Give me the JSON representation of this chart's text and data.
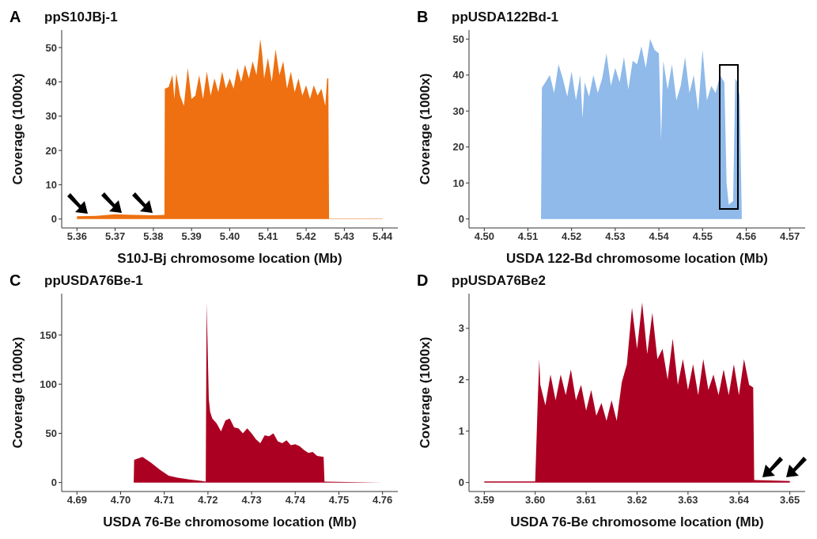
{
  "chart_data": [
    {
      "type": "area",
      "title": "ppS10JBj-1",
      "annotations": [
        "A"
      ],
      "xlabel": "S10J-Bj chromosome location (Mb)",
      "ylabel": "Coverage (1000x)",
      "xlim": [
        5.356,
        5.444
      ],
      "xticks": [
        5.36,
        5.37,
        5.38,
        5.39,
        {
          "value": 5.4,
          "label": "5.40"
        },
        5.41,
        5.42,
        5.43,
        5.44
      ],
      "ylim": [
        -2.6,
        55.1
      ],
      "yticks": [
        0,
        10,
        20,
        30,
        40,
        50
      ],
      "x": [
        5.36,
        5.365,
        5.37,
        5.375,
        5.38,
        5.3829,
        5.383,
        5.384,
        5.385,
        5.3855,
        5.386,
        5.387,
        5.388,
        5.389,
        5.39,
        5.391,
        5.392,
        5.393,
        5.394,
        5.395,
        5.396,
        5.397,
        5.398,
        5.399,
        5.4,
        5.401,
        5.402,
        5.403,
        5.404,
        5.405,
        5.406,
        5.407,
        5.408,
        5.4085,
        5.409,
        5.41,
        5.411,
        5.412,
        5.413,
        5.414,
        5.415,
        5.416,
        5.417,
        5.418,
        5.419,
        5.42,
        5.421,
        5.422,
        5.423,
        5.424,
        5.425,
        5.4255,
        5.4258,
        5.426,
        5.43,
        5.44
      ],
      "series": [
        {
          "color": "#ee7010",
          "values": [
            0.8,
            0.9,
            1.4,
            1.2,
            1.1,
            1.2,
            38,
            38.5,
            42,
            35,
            42.5,
            36,
            33,
            44,
            35,
            36,
            42,
            35,
            43,
            36,
            41,
            37,
            43,
            38,
            41,
            38,
            44,
            40,
            45,
            41,
            46,
            42,
            52.5,
            48,
            41,
            47,
            40,
            49.5,
            42,
            46,
            38,
            43,
            37,
            41,
            36,
            39,
            35,
            39,
            36,
            38,
            33,
            41,
            41,
            0.1,
            0.1,
            0.1
          ]
        }
      ]
    },
    {
      "type": "area",
      "title": "ppUSDA122Bd-1",
      "annotations": [
        "B"
      ],
      "xlabel": "USDA 122-Bd chromosome location (Mb)",
      "ylabel": "Coverage (1000x)",
      "xlim": [
        4.4965,
        4.5735
      ],
      "xticks": [
        {
          "value": 4.5,
          "label": "4.50"
        },
        4.51,
        4.52,
        4.53,
        4.54,
        4.55,
        4.56,
        4.57
      ],
      "ylim": [
        -2.5,
        52.5
      ],
      "yticks": [
        0,
        10,
        20,
        30,
        40,
        50
      ],
      "x": [
        4.5,
        4.513,
        4.5132,
        4.514,
        4.515,
        4.516,
        4.517,
        4.518,
        4.519,
        4.52,
        4.521,
        4.522,
        4.5225,
        4.523,
        4.524,
        4.525,
        4.526,
        4.527,
        4.528,
        4.529,
        4.53,
        4.531,
        4.532,
        4.533,
        4.534,
        4.535,
        4.536,
        4.537,
        4.538,
        4.539,
        4.54,
        4.5405,
        4.541,
        4.542,
        4.543,
        4.544,
        4.545,
        4.546,
        4.547,
        4.548,
        4.549,
        4.55,
        4.551,
        4.552,
        4.553,
        4.554,
        4.555,
        4.5555,
        4.556,
        4.557,
        4.5575,
        4.558,
        4.5585,
        4.559,
        4.57
      ],
      "series": [
        {
          "color": "#8fbaea",
          "values": [
            0,
            0,
            36.5,
            38,
            40,
            35,
            43,
            39,
            34,
            41,
            33,
            40,
            28,
            38,
            34,
            40,
            35,
            39,
            46,
            37,
            42,
            38,
            45,
            36,
            44,
            43,
            48,
            42,
            50,
            47,
            46,
            22,
            44,
            36,
            43,
            33,
            37,
            45,
            35,
            40,
            30,
            47,
            33,
            37,
            35,
            40,
            38,
            10,
            4,
            5,
            39,
            38,
            34,
            0,
            0
          ]
        }
      ]
    },
    {
      "type": "area",
      "title": "ppUSDA76Be-1",
      "annotations": [
        "C"
      ],
      "xlabel": "USDA 76-Be chromosome location (Mb)",
      "ylabel": "Coverage (1000x)",
      "xlim": [
        4.6865,
        4.7635
      ],
      "xticks": [
        4.69,
        {
          "value": 4.7,
          "label": "4.70"
        },
        4.71,
        4.72,
        4.73,
        4.74,
        4.75,
        4.76
      ],
      "ylim": [
        -9.15,
        192
      ],
      "yticks": [
        0,
        50,
        100,
        150
      ],
      "x": [
        4.69,
        4.703,
        4.7031,
        4.705,
        4.707,
        4.709,
        4.711,
        4.713,
        4.716,
        4.7195,
        4.7197,
        4.7202,
        4.7205,
        4.721,
        4.722,
        4.723,
        4.724,
        4.725,
        4.726,
        4.727,
        4.728,
        4.729,
        4.73,
        4.731,
        4.732,
        4.733,
        4.734,
        4.735,
        4.736,
        4.737,
        4.738,
        4.739,
        4.74,
        4.741,
        4.742,
        4.743,
        4.744,
        4.745,
        4.7465,
        4.7467,
        4.76
      ],
      "series": [
        {
          "color": "#ac0022",
          "values": [
            0,
            0,
            23,
            26,
            20,
            13,
            7,
            5,
            3,
            1,
            183,
            85,
            72,
            65,
            60,
            52,
            63,
            65,
            56,
            55,
            50,
            55,
            50,
            44,
            40,
            48,
            47,
            50,
            42,
            40,
            43,
            38,
            39,
            37,
            33,
            30,
            31,
            27,
            26,
            1,
            0
          ]
        }
      ]
    },
    {
      "type": "area",
      "title": "ppUSDA76Be2",
      "annotations": [
        "D"
      ],
      "xlabel": "USDA 76-Be chromosome location (Mb)",
      "ylabel": "Coverage (1000x)",
      "xlim": [
        3.587,
        3.653
      ],
      "xticks": [
        3.59,
        {
          "value": 3.6,
          "label": "3.60"
        },
        3.61,
        3.62,
        3.63,
        3.64,
        3.65
      ],
      "ylim": [
        -0.175,
        3.675
      ],
      "yticks": [
        0,
        1,
        2,
        3
      ],
      "x": [
        3.59,
        3.6,
        3.6005,
        3.6008,
        3.601,
        3.602,
        3.603,
        3.604,
        3.605,
        3.606,
        3.607,
        3.608,
        3.609,
        3.61,
        3.611,
        3.612,
        3.613,
        3.614,
        3.615,
        3.616,
        3.617,
        3.618,
        3.619,
        3.62,
        3.621,
        3.622,
        3.623,
        3.624,
        3.625,
        3.626,
        3.627,
        3.628,
        3.629,
        3.63,
        3.631,
        3.632,
        3.633,
        3.634,
        3.635,
        3.636,
        3.637,
        3.638,
        3.639,
        3.64,
        3.641,
        3.642,
        3.6428,
        3.643,
        3.65
      ],
      "series": [
        {
          "color": "#ac0022",
          "values": [
            0.02,
            0.02,
            1.6,
            2.4,
            1.9,
            1.5,
            2.1,
            1.6,
            2.1,
            1.7,
            2.2,
            1.6,
            1.9,
            1.4,
            1.8,
            1.3,
            1.55,
            1.2,
            1.6,
            1.2,
            1.95,
            2.3,
            3.4,
            2.6,
            3.5,
            2.5,
            3.3,
            2.4,
            2.6,
            2.0,
            2.8,
            1.9,
            2.4,
            1.8,
            2.3,
            1.7,
            2.4,
            1.8,
            2.1,
            1.7,
            2.2,
            1.7,
            2.3,
            1.7,
            2.4,
            1.9,
            1.85,
            0.05,
            0.03
          ]
        }
      ]
    }
  ]
}
